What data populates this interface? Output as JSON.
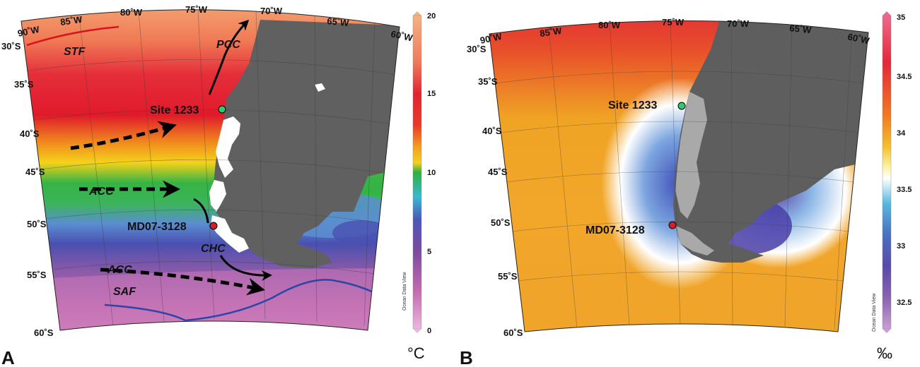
{
  "panels": [
    {
      "id": "A",
      "letter": "A",
      "longitudes": [
        "90˚W",
        "85˚W",
        "80˚W",
        "75˚W",
        "70˚W",
        "65˚W",
        "60˚W"
      ],
      "latitudes": [
        "30˚S",
        "35˚S",
        "40˚S",
        "45˚S",
        "50˚S",
        "55˚S",
        "60˚S"
      ],
      "sites": [
        {
          "name": "Site 1233",
          "color": "#2ecc71"
        },
        {
          "name": "MD07-3128",
          "color": "#d0202a"
        }
      ],
      "currents": [
        "STF",
        "PCC",
        "ACC",
        "ACC",
        "CHC",
        "SAF"
      ],
      "colorbar": {
        "ticks": [
          "20",
          "15",
          "10",
          "5",
          "0"
        ],
        "range": [
          0,
          20
        ],
        "watermark": "Ocean Data View",
        "unit": "°C"
      }
    },
    {
      "id": "B",
      "letter": "B",
      "longitudes": [
        "90˚W",
        "85˚W",
        "80˚W",
        "75˚W",
        "70˚W",
        "65˚W",
        "60˚W"
      ],
      "latitudes": [
        "30˚S",
        "35˚S",
        "40˚S",
        "45˚S",
        "50˚S",
        "55˚S",
        "60˚S"
      ],
      "sites": [
        {
          "name": "Site 1233",
          "color": "#2ecc71"
        },
        {
          "name": "MD07-3128",
          "color": "#d0202a"
        }
      ],
      "colorbar": {
        "ticks": [
          "35",
          "34.5",
          "34",
          "33.5",
          "33",
          "32.5"
        ],
        "range": [
          32.2,
          35
        ],
        "watermark": "Ocean Data View",
        "unit": "‰"
      }
    }
  ]
}
